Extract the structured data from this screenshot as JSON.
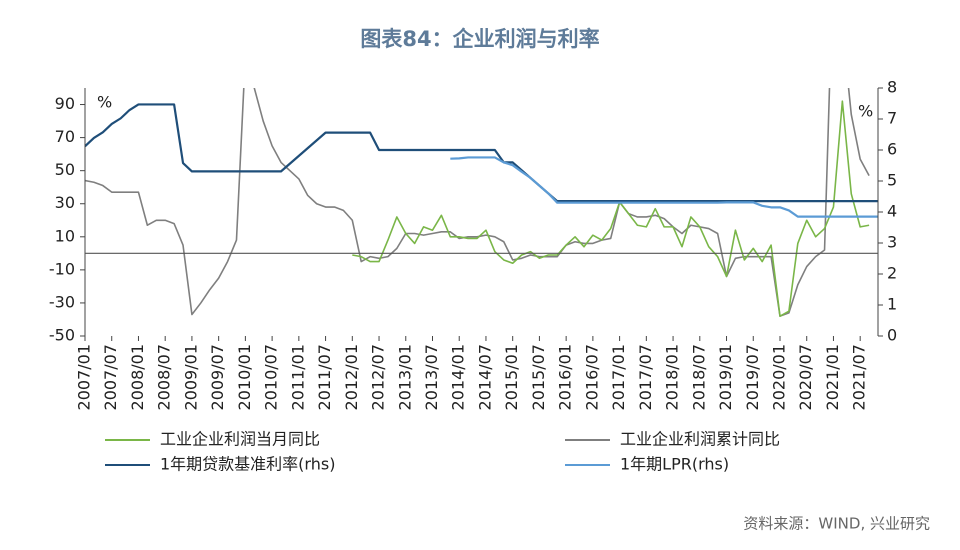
{
  "chart_data": {
    "type": "line",
    "title": "图表84：企业利润与利率",
    "source": "资料来源：WIND, 兴业研究",
    "ylabel": "%",
    "y2label": "%",
    "categories": [
      "2007/01",
      null,
      null,
      "2007/07",
      null,
      null,
      "2008/01",
      null,
      null,
      "2008/07",
      null,
      null,
      "2009/01",
      null,
      null,
      "2009/07",
      null,
      null,
      "2010/01",
      null,
      null,
      "2010/07",
      null,
      null,
      "2011/01",
      null,
      null,
      "2011/07",
      null,
      null,
      "2012/01",
      null,
      null,
      "2012/07",
      null,
      null,
      "2013/01",
      null,
      null,
      "2013/07",
      null,
      null,
      "2014/01",
      null,
      null,
      "2014/07",
      null,
      null,
      "2015/01",
      null,
      null,
      "2015/07",
      null,
      null,
      "2016/01",
      null,
      null,
      "2016/07",
      null,
      null,
      "2017/01",
      null,
      null,
      "2017/07",
      null,
      null,
      "2018/01",
      null,
      null,
      "2018/07",
      null,
      null,
      "2019/01",
      null,
      null,
      "2019/07",
      null,
      null,
      "2020/01",
      null,
      null,
      "2020/07",
      null,
      null,
      "2021/01",
      null,
      null,
      "2021/07",
      null,
      null
    ],
    "ylim": [
      -50,
      100
    ],
    "yticks": [
      -50,
      -30,
      -10,
      10,
      30,
      50,
      70,
      90
    ],
    "y2lim": [
      0,
      8
    ],
    "y2ticks": [
      0,
      1,
      2,
      3,
      4,
      5,
      6,
      7,
      8
    ],
    "series": [
      {
        "name": "工业企业利润累计同比",
        "color": "#7f7f7f",
        "values": [
          44,
          43,
          41,
          37,
          37,
          37,
          37,
          17,
          20,
          20,
          18,
          5,
          -37,
          -30,
          -22,
          -15,
          -5,
          8,
          120,
          100,
          80,
          65,
          55,
          50,
          45,
          35,
          30,
          28,
          28,
          26,
          20,
          -5,
          -2,
          -3,
          -2,
          3,
          12,
          12,
          11,
          12,
          13,
          13,
          9,
          10,
          10,
          11,
          10,
          7,
          -4,
          -3,
          -1,
          -2,
          -2,
          -2,
          5,
          7,
          6,
          6,
          8,
          9,
          31,
          24,
          22,
          22,
          23,
          21,
          16,
          12,
          17,
          16,
          15,
          12,
          -14,
          -3,
          -2,
          -2,
          -2,
          -2,
          -38,
          -36,
          -19,
          -8,
          -2,
          2,
          178,
          137,
          84,
          57,
          47,
          null
        ]
      },
      {
        "name": "工业企业利润当月同比",
        "color": "#7ab648",
        "values": [
          null,
          null,
          null,
          null,
          null,
          null,
          null,
          null,
          null,
          null,
          null,
          null,
          null,
          null,
          null,
          null,
          null,
          null,
          null,
          null,
          null,
          null,
          null,
          null,
          null,
          null,
          null,
          null,
          null,
          null,
          -1,
          -2,
          -5,
          -5,
          8,
          22,
          12,
          6,
          16,
          14,
          23,
          10,
          10,
          9,
          9,
          14,
          1,
          -4,
          -6,
          -1,
          1,
          -3,
          -1,
          -1,
          5,
          10,
          4,
          11,
          8,
          15,
          31,
          24,
          17,
          16,
          27,
          16,
          16,
          4,
          22,
          16,
          4,
          -2,
          -14,
          14,
          -4,
          3,
          -5,
          5,
          -38,
          -35,
          6,
          20,
          10,
          15,
          28,
          92,
          36,
          16,
          17,
          null
        ]
      },
      {
        "name": "1年期贷款基准利率(rhs)",
        "color": "#1f4e79",
        "axis": "y2",
        "values": [
          6.12,
          6.39,
          6.57,
          6.84,
          7.02,
          7.29,
          7.47,
          7.47,
          7.47,
          7.47,
          7.47,
          5.58,
          5.31,
          5.31,
          5.31,
          5.31,
          5.31,
          5.31,
          5.31,
          5.31,
          5.31,
          5.31,
          5.31,
          5.56,
          5.81,
          6.06,
          6.31,
          6.56,
          6.56,
          6.56,
          6.56,
          6.56,
          6.56,
          6.0,
          6.0,
          6.0,
          6.0,
          6.0,
          6.0,
          6.0,
          6.0,
          6.0,
          6.0,
          6.0,
          6.0,
          6.0,
          6.0,
          5.6,
          5.6,
          5.35,
          5.1,
          4.85,
          4.6,
          4.35,
          4.35,
          4.35,
          4.35,
          4.35,
          4.35,
          4.35,
          4.35,
          4.35,
          4.35,
          4.35,
          4.35,
          4.35,
          4.35,
          4.35,
          4.35,
          4.35,
          4.35,
          4.35,
          4.35,
          4.35,
          4.35,
          4.35,
          4.35,
          4.35,
          4.35,
          4.35,
          4.35,
          4.35,
          4.35,
          4.35,
          4.35,
          4.35,
          4.35,
          4.35,
          4.35,
          4.35
        ]
      },
      {
        "name": "1年期LPR(rhs)",
        "color": "#5b9bd5",
        "axis": "y2",
        "values": [
          null,
          null,
          null,
          null,
          null,
          null,
          null,
          null,
          null,
          null,
          null,
          null,
          null,
          null,
          null,
          null,
          null,
          null,
          null,
          null,
          null,
          null,
          null,
          null,
          null,
          null,
          null,
          null,
          null,
          null,
          null,
          null,
          null,
          null,
          null,
          null,
          null,
          null,
          null,
          null,
          null,
          5.72,
          5.73,
          5.76,
          5.76,
          5.76,
          5.76,
          5.6,
          5.51,
          5.3,
          5.1,
          4.85,
          4.6,
          4.3,
          4.3,
          4.3,
          4.3,
          4.3,
          4.3,
          4.3,
          4.3,
          4.3,
          4.3,
          4.3,
          4.3,
          4.3,
          4.3,
          4.3,
          4.3,
          4.3,
          4.3,
          4.3,
          4.31,
          4.31,
          4.31,
          4.31,
          4.2,
          4.15,
          4.15,
          4.05,
          3.85,
          3.85,
          3.85,
          3.85,
          3.85,
          3.85,
          3.85,
          3.85,
          3.85,
          3.85
        ]
      }
    ]
  }
}
